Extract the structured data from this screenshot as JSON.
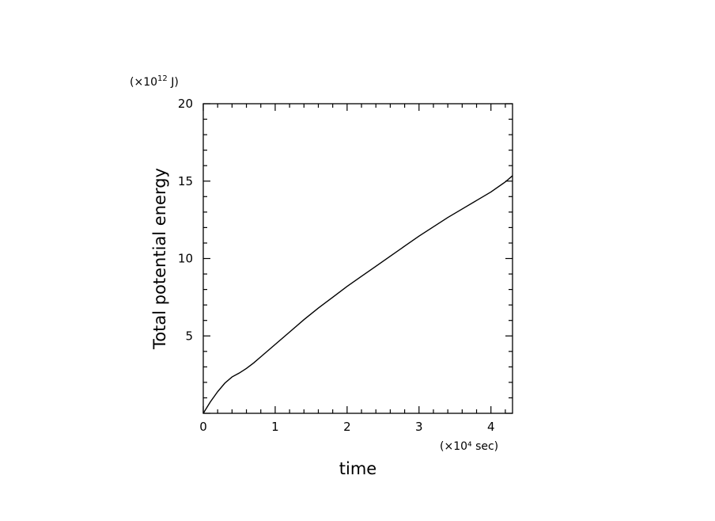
{
  "chart_data": {
    "type": "line",
    "title": "",
    "xlabel": "time",
    "ylabel": "Total potential energy",
    "x_unit": "(×10⁴ sec)",
    "y_unit_prefix": "(×10",
    "y_unit_exp": "12",
    "y_unit_suffix": " J)",
    "xlim": [
      0,
      4.3
    ],
    "ylim": [
      0,
      20
    ],
    "x_ticks": [
      0,
      1,
      2,
      3,
      4
    ],
    "y_ticks": [
      5,
      10,
      15,
      20
    ],
    "x_tick_labels": [
      "0",
      "1",
      "2",
      "3",
      "4"
    ],
    "y_tick_labels": [
      "5",
      "10",
      "15",
      "20"
    ],
    "grid": false,
    "series": [
      {
        "x": [
          0,
          0.1,
          0.2,
          0.3,
          0.4,
          0.5,
          0.6,
          0.7,
          0.8,
          1.0,
          1.2,
          1.4,
          1.6,
          1.8,
          2.0,
          2.2,
          2.4,
          2.6,
          2.8,
          3.0,
          3.2,
          3.4,
          3.6,
          3.8,
          4.0,
          4.2,
          4.3
        ],
        "y": [
          0,
          0.75,
          1.4,
          1.95,
          2.35,
          2.6,
          2.9,
          3.25,
          3.65,
          4.45,
          5.25,
          6.05,
          6.8,
          7.5,
          8.2,
          8.85,
          9.5,
          10.15,
          10.8,
          11.45,
          12.05,
          12.65,
          13.2,
          13.75,
          14.3,
          14.95,
          15.35
        ]
      }
    ],
    "line_color": "#000000"
  }
}
